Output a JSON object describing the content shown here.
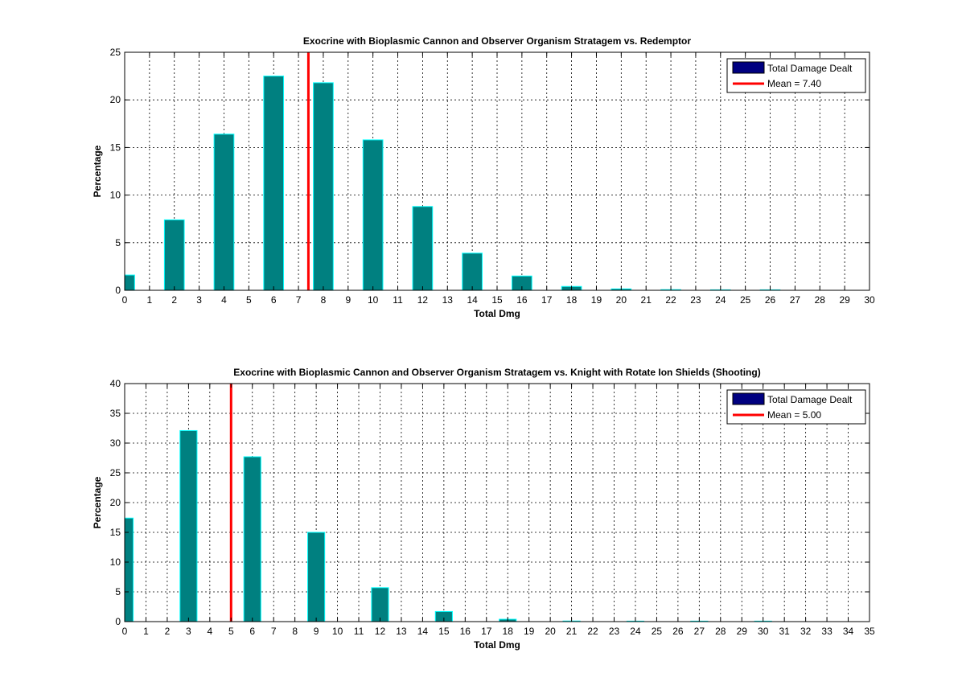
{
  "chart_data": [
    {
      "type": "bar",
      "title": "Exocrine with Bioplasmic Cannon and Observer Organism Stratagem vs. Redemptor",
      "xlabel": "Total Dmg",
      "ylabel": "Percentage",
      "xlim": [
        0,
        30
      ],
      "ylim": [
        0,
        25
      ],
      "xticks": [
        0,
        1,
        2,
        3,
        4,
        5,
        6,
        7,
        8,
        9,
        10,
        11,
        12,
        13,
        14,
        15,
        16,
        17,
        18,
        19,
        20,
        21,
        22,
        23,
        24,
        25,
        26,
        27,
        28,
        29,
        30
      ],
      "yticks": [
        0,
        5,
        10,
        15,
        20,
        25
      ],
      "grid": true,
      "legend_position": "top-right",
      "x": [
        0,
        2,
        4,
        6,
        8,
        10,
        12,
        14,
        16,
        18,
        20,
        22,
        24,
        26
      ],
      "values": [
        1.6,
        7.4,
        16.4,
        22.5,
        21.8,
        15.8,
        8.8,
        3.9,
        1.5,
        0.4,
        0.15,
        0.07,
        0.04,
        0.02
      ],
      "bar_width_units": 0.8,
      "mean": 7.4,
      "legend": {
        "bars_label": "Total Damage Dealt",
        "mean_label": "Mean = 7.40"
      }
    },
    {
      "type": "bar",
      "title": "Exocrine with Bioplasmic Cannon and Observer Organism Stratagem vs. Knight with Rotate Ion Shields (Shooting)",
      "xlabel": "Total Dmg",
      "ylabel": "Percentage",
      "xlim": [
        0,
        35
      ],
      "ylim": [
        0,
        40
      ],
      "xticks": [
        0,
        1,
        2,
        3,
        4,
        5,
        6,
        7,
        8,
        9,
        10,
        11,
        12,
        13,
        14,
        15,
        16,
        17,
        18,
        19,
        20,
        21,
        22,
        23,
        24,
        25,
        26,
        27,
        28,
        29,
        30,
        31,
        32,
        33,
        34,
        35
      ],
      "yticks": [
        0,
        5,
        10,
        15,
        20,
        25,
        30,
        35,
        40
      ],
      "grid": true,
      "legend_position": "top-right",
      "x": [
        0,
        3,
        6,
        9,
        12,
        15,
        18,
        21,
        24,
        27,
        30
      ],
      "values": [
        17.4,
        32.1,
        27.7,
        15.0,
        5.7,
        1.7,
        0.4,
        0.1,
        0.05,
        0.03,
        0.02
      ],
      "bar_width_units": 0.8,
      "mean": 5.0,
      "legend": {
        "bars_label": "Total Damage Dealt",
        "mean_label": "Mean = 5.00"
      }
    }
  ],
  "colors": {
    "bar_fill": "#008080",
    "bar_edge": "#00FFFF",
    "mean_line": "#FF0000",
    "legend_patch": "#000080",
    "grid": "#000000"
  }
}
